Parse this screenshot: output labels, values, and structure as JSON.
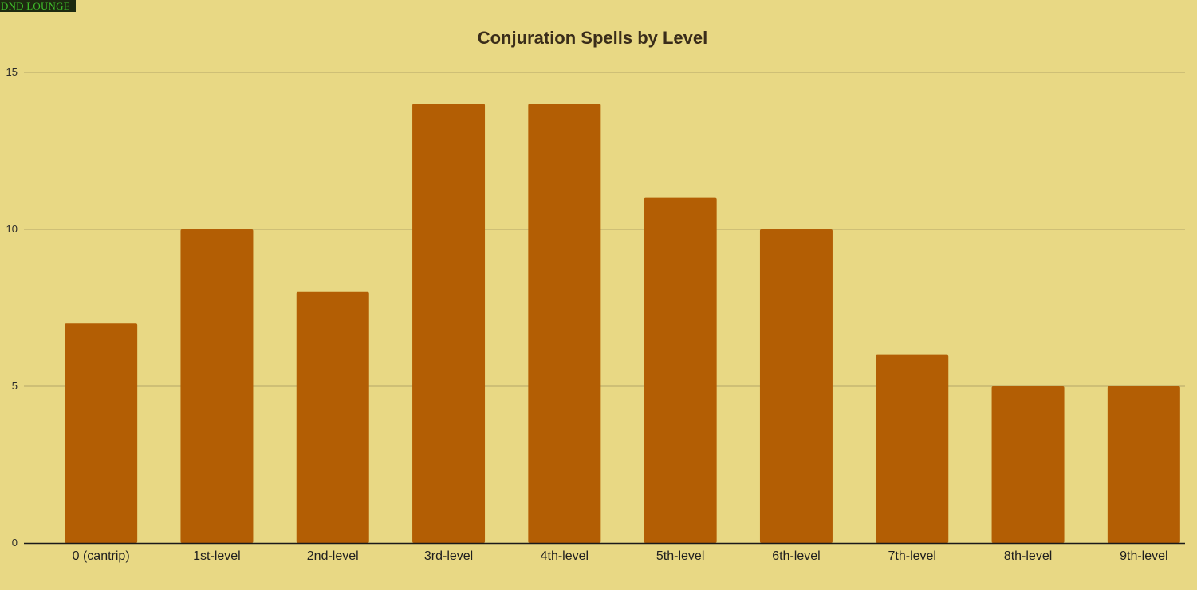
{
  "watermark": {
    "text": "DND LOUNGE"
  },
  "chart_data": {
    "type": "bar",
    "title": "Conjuration Spells by Level",
    "xlabel": "",
    "ylabel": "",
    "categories": [
      "0 (cantrip)",
      "1st-level",
      "2nd-level",
      "3rd-level",
      "4th-level",
      "5th-level",
      "6th-level",
      "7th-level",
      "8th-level",
      "9th-level"
    ],
    "values": [
      7,
      10,
      8,
      14,
      14,
      11,
      10,
      6,
      5,
      5
    ],
    "ylim": [
      0,
      15
    ],
    "yticks": [
      0,
      5,
      10,
      15
    ],
    "grid": true,
    "legend": "none",
    "colors": {
      "background": "#e8d884",
      "bar": "#b35e04",
      "grid": "#b3a667",
      "axis": "#1a1a1a"
    }
  }
}
